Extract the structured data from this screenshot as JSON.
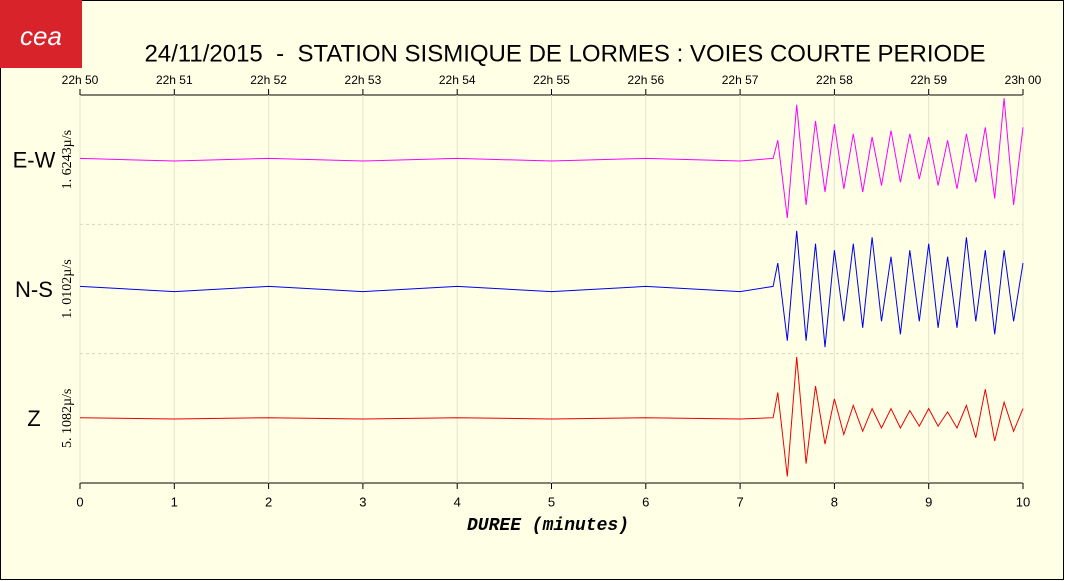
{
  "header": {
    "logo": "cea",
    "title": "24/11/2015  -  STATION SISMIQUE DE LORMES : VOIES COURTE PERIODE"
  },
  "chart_data": {
    "type": "line",
    "xlabel": "DUREE (minutes)",
    "xlim": [
      0,
      10
    ],
    "xticks": [
      0,
      1,
      2,
      3,
      4,
      5,
      6,
      7,
      8,
      9,
      10
    ],
    "top_tick_labels": [
      "22h 50",
      "22h 51",
      "22h 52",
      "22h 53",
      "22h 54",
      "22h 55",
      "22h 56",
      "22h 57",
      "22h 58",
      "22h 59",
      "23h 00"
    ],
    "ylim": [
      -1,
      1
    ],
    "x": [
      0,
      1,
      2,
      3,
      4,
      5,
      6,
      7,
      7.35,
      7.4,
      7.5,
      7.6,
      7.7,
      7.8,
      7.9,
      8.0,
      8.1,
      8.2,
      8.3,
      8.4,
      8.5,
      8.6,
      8.7,
      8.8,
      8.9,
      9.0,
      9.1,
      9.2,
      9.3,
      9.4,
      9.5,
      9.6,
      9.7,
      9.8,
      9.9,
      10.0
    ],
    "series": [
      {
        "name": "E-W",
        "scale_label": "1. 6243µ/s",
        "color": "#ff00ff",
        "values": [
          0.02,
          -0.02,
          0.02,
          -0.02,
          0.02,
          -0.02,
          0.02,
          -0.02,
          0.02,
          0.3,
          -0.9,
          0.85,
          -0.7,
          0.6,
          -0.5,
          0.55,
          -0.45,
          0.4,
          -0.5,
          0.35,
          -0.4,
          0.45,
          -0.35,
          0.4,
          -0.3,
          0.35,
          -0.4,
          0.3,
          -0.45,
          0.4,
          -0.35,
          0.5,
          -0.6,
          0.95,
          -0.7,
          0.5
        ]
      },
      {
        "name": "N-S",
        "scale_label": "1. 0102µ/s",
        "color": "#0000ee",
        "values": [
          0.04,
          -0.04,
          0.04,
          -0.04,
          0.04,
          -0.04,
          0.04,
          -0.04,
          0.04,
          0.4,
          -0.8,
          0.9,
          -0.8,
          0.7,
          -0.9,
          0.6,
          -0.5,
          0.7,
          -0.6,
          0.8,
          -0.5,
          0.5,
          -0.7,
          0.6,
          -0.5,
          0.7,
          -0.6,
          0.5,
          -0.6,
          0.8,
          -0.5,
          0.6,
          -0.7,
          0.6,
          -0.5,
          0.4
        ]
      },
      {
        "name": "Z",
        "scale_label": "5. 1082µ/s",
        "color": "#ee0000",
        "values": [
          0.01,
          -0.01,
          0.01,
          -0.01,
          0.01,
          -0.01,
          0.01,
          -0.01,
          0.01,
          0.4,
          -0.9,
          0.95,
          -0.7,
          0.5,
          -0.4,
          0.3,
          -0.25,
          0.2,
          -0.2,
          0.15,
          -0.15,
          0.15,
          -0.15,
          0.12,
          -0.12,
          0.15,
          -0.12,
          0.1,
          -0.15,
          0.2,
          -0.3,
          0.45,
          -0.35,
          0.25,
          -0.2,
          0.15
        ]
      }
    ]
  }
}
